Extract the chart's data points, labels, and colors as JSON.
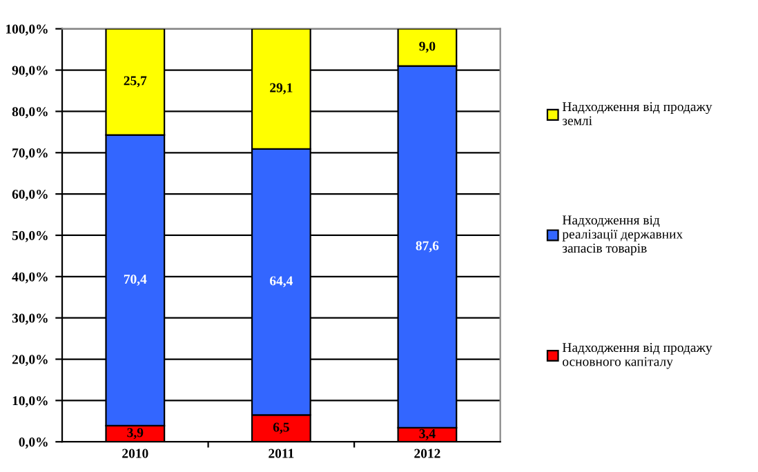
{
  "chart_data": {
    "type": "bar",
    "stacked": true,
    "categories": [
      "2010",
      "2011",
      "2012"
    ],
    "series": [
      {
        "name": "Надходження від продажу\nосновного капіталу",
        "color": "#ff0000",
        "values": [
          3.9,
          6.5,
          3.4
        ],
        "value_labels": [
          "3,9",
          "6,5",
          "3,4"
        ]
      },
      {
        "name": "Надходження від\nреалізації державних\nзапасів товарів",
        "color": "#3366ff",
        "values": [
          70.4,
          64.4,
          87.6
        ],
        "value_labels": [
          "70,4",
          "64,4",
          "87,6"
        ]
      },
      {
        "name": "Надходження від продажу\nземлі",
        "color": "#ffff00",
        "values": [
          25.7,
          29.1,
          9.0
        ],
        "value_labels": [
          "25,7",
          "29,1",
          "9,0"
        ]
      }
    ],
    "ylim": [
      0,
      100
    ],
    "yticks": [
      {
        "value": 0,
        "label": "0,0%"
      },
      {
        "value": 10,
        "label": "10,0%"
      },
      {
        "value": 20,
        "label": "20,0%"
      },
      {
        "value": 30,
        "label": "30,0%"
      },
      {
        "value": 40,
        "label": "40,0%"
      },
      {
        "value": 50,
        "label": "50,0%"
      },
      {
        "value": 60,
        "label": "60,0%"
      },
      {
        "value": 70,
        "label": "70,0%"
      },
      {
        "value": 80,
        "label": "80,0%"
      },
      {
        "value": 90,
        "label": "90,0%"
      },
      {
        "value": 100,
        "label": "100,0%"
      }
    ],
    "grid": "y",
    "legend": "right"
  }
}
